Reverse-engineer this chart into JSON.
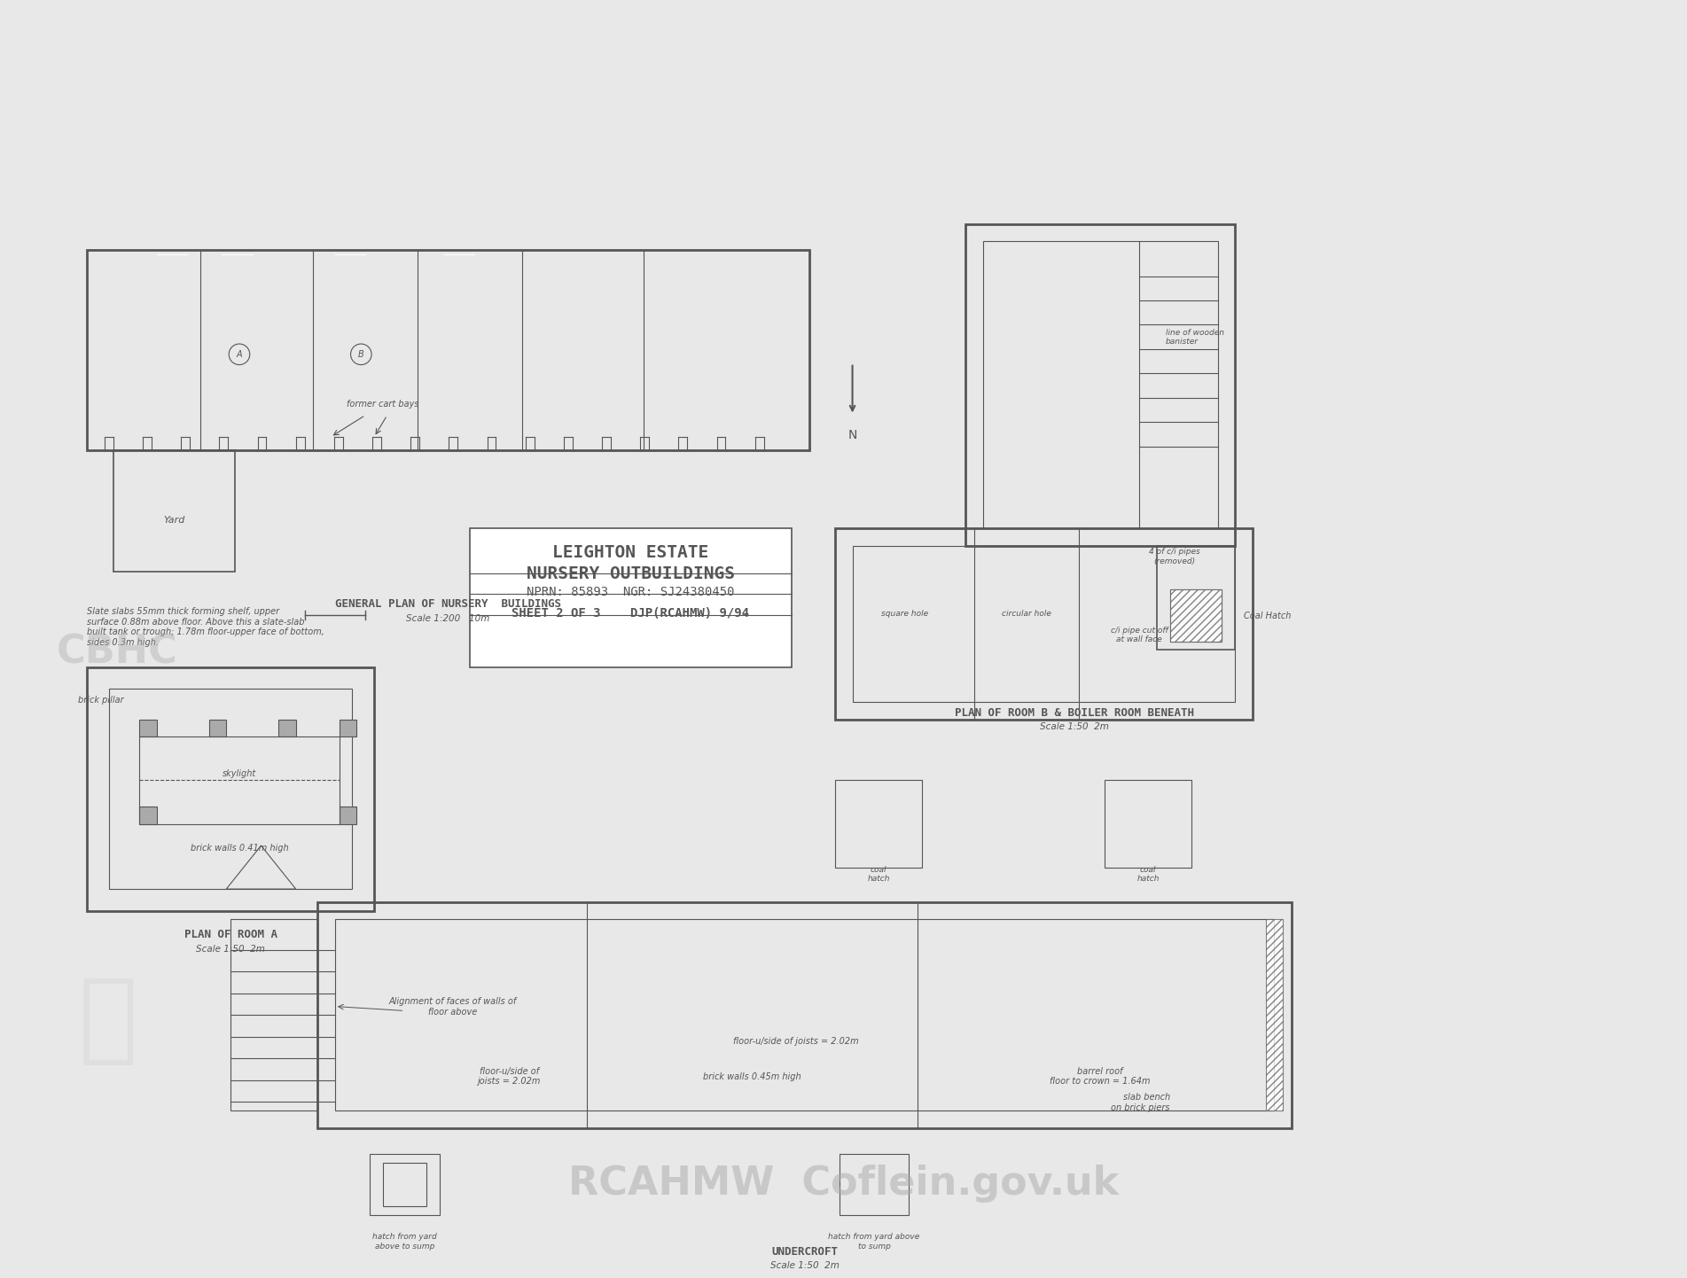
{
  "background_color": "#e8e8e8",
  "paper_color": "#f0efed",
  "line_color": "#555555",
  "title": "LEIGHTON ESTATE NURSERY OUTBUILDINGS",
  "subtitle_line1": "LEIGHTON ESTATE",
  "subtitle_line2": "NURSERY OUTBUILDINGS",
  "subtitle_line3": "NPRN: 85893  NGR: SJ24380450",
  "subtitle_line4": "SHEET 2 OF 3    DJP(RCAHMW) 9/94",
  "general_plan_title": "GENERAL PLAN OF NURSERY  BUILDINGS",
  "general_plan_scale": "Scale 1:200   10m",
  "plan_b_title": "PLAN OF ROOM B & BOILER ROOM BENEATH",
  "plan_b_scale": "Scale 1:50  2m",
  "plan_a_title": "PLAN OF ROOM A",
  "plan_a_scale": "Scale 1:50  2m",
  "undercroft_title": "UNDERCROFT",
  "undercroft_scale": "Scale 1:50  2m",
  "watermark_text": "RCAHMW  Coflein.gov.uk",
  "cbhc_text": "CBHC",
  "fig_width": 19.2,
  "fig_height": 14.18
}
